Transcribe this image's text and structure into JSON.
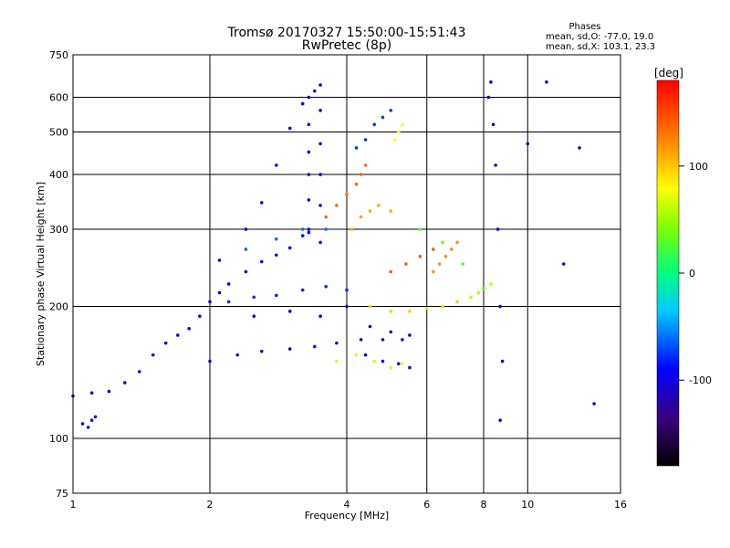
{
  "chart_data": {
    "type": "scatter",
    "title": "Tromsø 20170327 15:50:00-15:51:43",
    "subtitle": "RwPretec (8p)",
    "xlabel": "Frequency [MHz]",
    "ylabel": "Stationary phase Virtual Height [km]",
    "x_scale": "log",
    "y_scale": "log",
    "xlim": [
      1,
      16
    ],
    "ylim": [
      75,
      750
    ],
    "x_ticks": [
      1,
      2,
      4,
      6,
      8,
      10,
      16
    ],
    "y_ticks": [
      75,
      100,
      200,
      300,
      400,
      500,
      600,
      750
    ],
    "grid": true,
    "phase_stats": {
      "title": "Phases",
      "o_line": "mean, sd,O: -77.0, 19.0",
      "x_line": "mean, sd,X: 103.1, 23.3"
    },
    "colorbar": {
      "label": "[deg]",
      "range": [
        -180,
        180
      ],
      "ticks": [
        100,
        0,
        -100
      ],
      "tick_labels": [
        "100",
        "0",
        "-100"
      ]
    },
    "traces": [
      {
        "phase": -95,
        "points": [
          [
            1.0,
            125
          ],
          [
            1.1,
            127
          ],
          [
            1.2,
            128
          ],
          [
            1.3,
            134
          ],
          [
            1.4,
            142
          ],
          [
            1.5,
            155
          ],
          [
            1.6,
            165
          ],
          [
            1.7,
            172
          ],
          [
            1.8,
            178
          ],
          [
            1.9,
            190
          ],
          [
            2.0,
            205
          ],
          [
            2.1,
            215
          ],
          [
            2.2,
            225
          ],
          [
            2.4,
            240
          ],
          [
            2.6,
            253
          ],
          [
            2.8,
            262
          ],
          [
            3.0,
            272
          ],
          [
            3.2,
            290
          ],
          [
            3.3,
            295
          ]
        ]
      },
      {
        "phase": -85,
        "points": [
          [
            1.05,
            108
          ],
          [
            1.08,
            106
          ],
          [
            1.1,
            110
          ],
          [
            1.12,
            112
          ]
        ]
      },
      {
        "phase": -90,
        "points": [
          [
            2.1,
            255
          ],
          [
            2.4,
            300
          ],
          [
            2.6,
            345
          ],
          [
            2.8,
            420
          ],
          [
            3.0,
            510
          ],
          [
            3.2,
            580
          ],
          [
            3.4,
            620
          ]
        ]
      },
      {
        "phase": -100,
        "points": [
          [
            2.0,
            150
          ],
          [
            2.3,
            155
          ],
          [
            2.6,
            158
          ],
          [
            3.0,
            160
          ],
          [
            3.4,
            162
          ],
          [
            3.8,
            165
          ],
          [
            4.3,
            168
          ],
          [
            4.8,
            168
          ],
          [
            5.3,
            168
          ]
        ]
      },
      {
        "phase": -80,
        "points": [
          [
            2.2,
            205
          ],
          [
            2.5,
            210
          ],
          [
            2.8,
            212
          ],
          [
            3.2,
            218
          ],
          [
            3.6,
            222
          ],
          [
            4.0,
            218
          ]
        ]
      },
      {
        "phase": -105,
        "points": [
          [
            3.3,
            300
          ],
          [
            3.3,
            350
          ],
          [
            3.3,
            400
          ],
          [
            3.3,
            450
          ],
          [
            3.3,
            520
          ],
          [
            3.3,
            600
          ]
        ]
      },
      {
        "phase": -100,
        "points": [
          [
            3.5,
            280
          ],
          [
            3.5,
            340
          ],
          [
            3.5,
            400
          ],
          [
            3.5,
            470
          ],
          [
            3.5,
            560
          ],
          [
            3.5,
            640
          ]
        ]
      },
      {
        "phase": -75,
        "points": [
          [
            4.2,
            460
          ],
          [
            4.4,
            480
          ],
          [
            4.6,
            520
          ],
          [
            4.8,
            540
          ],
          [
            5.0,
            560
          ]
        ]
      },
      {
        "phase": -60,
        "points": [
          [
            2.4,
            270
          ],
          [
            2.8,
            285
          ],
          [
            3.2,
            300
          ],
          [
            3.6,
            300
          ]
        ]
      },
      {
        "phase": -95,
        "points": [
          [
            2.5,
            190
          ],
          [
            3.0,
            195
          ],
          [
            3.5,
            190
          ],
          [
            4.0,
            200
          ],
          [
            4.5,
            180
          ],
          [
            5.0,
            175
          ],
          [
            5.5,
            172
          ]
        ]
      },
      {
        "phase": -90,
        "points": [
          [
            4.4,
            155
          ],
          [
            4.8,
            150
          ],
          [
            5.2,
            148
          ],
          [
            5.5,
            145
          ]
        ]
      },
      {
        "phase": -100,
        "points": [
          [
            8.2,
            600
          ],
          [
            8.3,
            650
          ],
          [
            8.4,
            520
          ],
          [
            8.5,
            420
          ],
          [
            8.6,
            300
          ],
          [
            8.7,
            200
          ],
          [
            8.8,
            150
          ],
          [
            8.7,
            110
          ]
        ]
      },
      {
        "phase": 135,
        "points": [
          [
            3.6,
            320
          ],
          [
            3.8,
            340
          ],
          [
            4.0,
            360
          ],
          [
            4.2,
            380
          ],
          [
            4.3,
            400
          ],
          [
            4.4,
            420
          ]
        ]
      },
      {
        "phase": 110,
        "points": [
          [
            4.1,
            300
          ],
          [
            4.3,
            320
          ],
          [
            4.5,
            330
          ],
          [
            4.7,
            340
          ],
          [
            5.0,
            330
          ]
        ]
      },
      {
        "phase": 85,
        "points": [
          [
            3.8,
            150
          ],
          [
            4.2,
            155
          ],
          [
            4.6,
            150
          ],
          [
            5.0,
            145
          ],
          [
            5.3,
            148
          ]
        ]
      },
      {
        "phase": 80,
        "points": [
          [
            5.1,
            480
          ],
          [
            5.2,
            500
          ],
          [
            5.3,
            520
          ]
        ]
      },
      {
        "phase": 95,
        "points": [
          [
            4.5,
            200
          ],
          [
            5.0,
            195
          ],
          [
            5.5,
            195
          ],
          [
            6.0,
            198
          ],
          [
            6.5,
            200
          ],
          [
            7.0,
            205
          ]
        ]
      },
      {
        "phase": 120,
        "points": [
          [
            6.2,
            240
          ],
          [
            6.4,
            250
          ],
          [
            6.6,
            260
          ],
          [
            6.8,
            270
          ],
          [
            7.0,
            280
          ]
        ]
      },
      {
        "phase": 60,
        "points": [
          [
            7.5,
            210
          ],
          [
            7.8,
            215
          ],
          [
            8.0,
            220
          ],
          [
            8.3,
            225
          ]
        ]
      },
      {
        "phase": 30,
        "points": [
          [
            5.8,
            300
          ],
          [
            6.5,
            280
          ],
          [
            7.2,
            250
          ],
          [
            8.0,
            220
          ]
        ]
      },
      {
        "phase": 140,
        "points": [
          [
            5.0,
            240
          ],
          [
            5.4,
            250
          ],
          [
            5.8,
            260
          ],
          [
            6.2,
            270
          ]
        ]
      },
      {
        "phase": -110,
        "points": [
          [
            10.0,
            470
          ],
          [
            11.0,
            650
          ],
          [
            12.0,
            250
          ],
          [
            13.0,
            460
          ],
          [
            14.0,
            120
          ]
        ]
      }
    ]
  }
}
